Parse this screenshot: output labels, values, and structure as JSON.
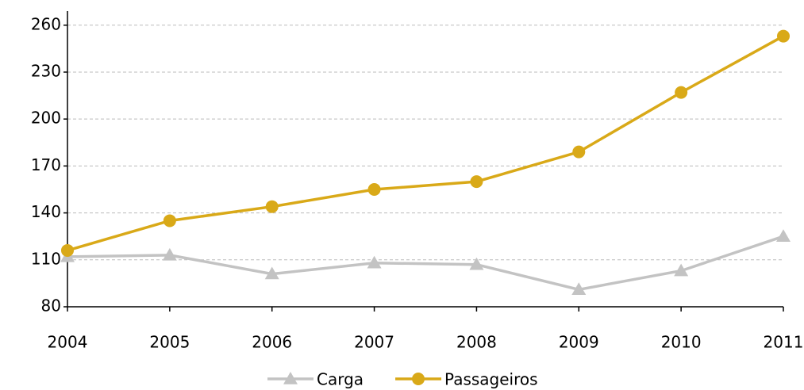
{
  "chart_data": {
    "type": "line",
    "x": [
      2004,
      2005,
      2006,
      2007,
      2008,
      2009,
      2010,
      2011
    ],
    "xlim": [
      2004,
      2011
    ],
    "xticks": [
      2004,
      2005,
      2006,
      2007,
      2008,
      2009,
      2010,
      2011
    ],
    "ylim": [
      80,
      269
    ],
    "yticks": [
      80,
      110,
      140,
      170,
      200,
      230,
      260
    ],
    "grid": true,
    "legend": "bottom",
    "series": [
      {
        "name": "Carga",
        "color": "#c3c3c3",
        "marker": "triangle",
        "values": [
          112,
          113,
          101,
          108,
          107,
          91,
          103,
          125
        ]
      },
      {
        "name": "Passageiros",
        "color": "#d9a918",
        "marker": "circle",
        "values": [
          116,
          135,
          144,
          155,
          160,
          179,
          217,
          253
        ]
      }
    ]
  }
}
